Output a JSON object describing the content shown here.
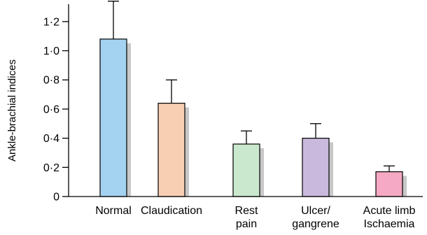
{
  "chart_data": {
    "type": "bar",
    "ylabel": "Ankle-brachial indices",
    "xlabel": "",
    "title": "",
    "ylim": [
      0,
      1.3
    ],
    "yticks": [
      0,
      0.2,
      0.4,
      0.6,
      0.8,
      1.0,
      1.2
    ],
    "ytick_labels": [
      "0",
      "0·2",
      "0·4",
      "0·6",
      "0·8",
      "1·0",
      "1·2"
    ],
    "categories": [
      [
        "Normal"
      ],
      [
        "Claudication"
      ],
      [
        "Rest",
        "pain"
      ],
      [
        "Ulcer/",
        "gangrene"
      ],
      [
        "Acute limb",
        "Ischaemia"
      ]
    ],
    "values": [
      1.08,
      0.64,
      0.36,
      0.4,
      0.17
    ],
    "errors": [
      0.26,
      0.16,
      0.09,
      0.1,
      0.04
    ],
    "colors": [
      "#a4d2f1",
      "#f9cfb3",
      "#cae8cd",
      "#c9b9dd",
      "#f6a9c4"
    ],
    "shadow_color": "#c8c8c8",
    "grid": false,
    "legend": "none"
  }
}
